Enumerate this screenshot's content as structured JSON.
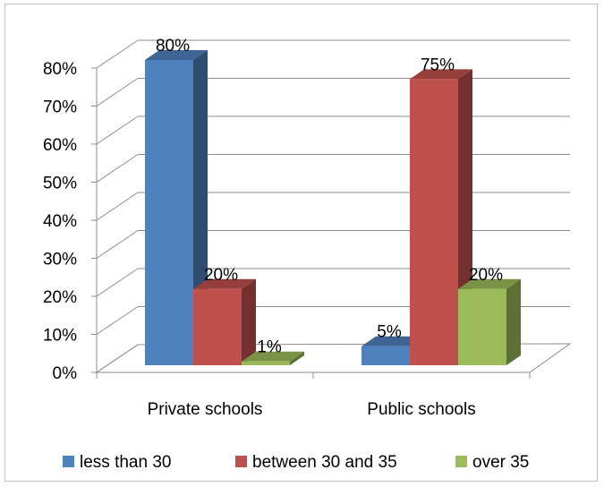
{
  "chart_data": {
    "type": "bar",
    "categories": [
      "Private schools",
      "Public schools"
    ],
    "series": [
      {
        "name": "less than 30",
        "values": [
          80,
          5
        ],
        "labels": [
          "80%",
          "5%"
        ],
        "color": "#4F81BD"
      },
      {
        "name": "between 30 and 35",
        "values": [
          20,
          75
        ],
        "labels": [
          "20%",
          "75%"
        ],
        "color": "#C0504D"
      },
      {
        "name": "over 35",
        "values": [
          1,
          20
        ],
        "labels": [
          "1%",
          "20%"
        ],
        "color": "#9BBB59"
      }
    ],
    "yticks": [
      "0%",
      "10%",
      "20%",
      "30%",
      "40%",
      "50%",
      "60%",
      "70%",
      "80%"
    ],
    "ylim": [
      0,
      80
    ],
    "grid": true,
    "legend": "bottom",
    "style": "3d-clustered-column"
  }
}
